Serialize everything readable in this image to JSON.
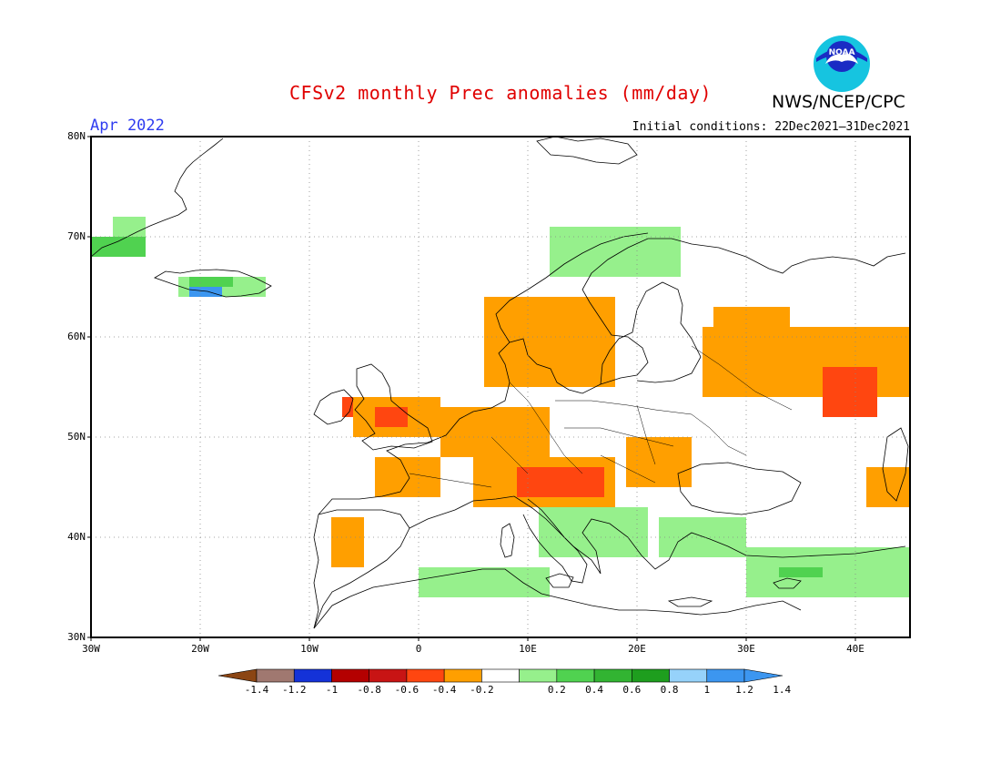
{
  "header": {
    "title": "CFSv2 monthly Prec anomalies (mm/day)",
    "org": "NWS/NCEP/CPC",
    "valid_month": "Apr 2022",
    "initial_conditions": "Initial conditions: 22Dec2021–31Dec2021",
    "logo_text": "NOAA"
  },
  "axes": {
    "lat_labels": [
      "80N",
      "70N",
      "60N",
      "50N",
      "40N",
      "30N"
    ],
    "lon_labels": [
      "30W",
      "20W",
      "10W",
      "0",
      "10E",
      "20E",
      "30E",
      "40E"
    ]
  },
  "colorbar": {
    "labels": [
      "-1.4",
      "-1.2",
      "-1",
      "-0.8",
      "-0.6",
      "-0.4",
      "-0.2",
      "0.2",
      "0.4",
      "0.6",
      "0.8",
      "1",
      "1.2",
      "1.4"
    ],
    "colors": [
      "#8b4513",
      "#a07870",
      "#1432d8",
      "#b40000",
      "#c81414",
      "#ff4610",
      "#ff9f00",
      "#ffffff",
      "#96f08c",
      "#50d250",
      "#32b432",
      "#1e9e1e",
      "#96d2fa",
      "#3c96f0",
      "#3c96f0"
    ]
  },
  "map": {
    "extent": {
      "lon": [
        -30,
        45
      ],
      "lat": [
        30,
        80
      ]
    },
    "cell_size_deg": 1,
    "anomaly_regions": [
      {
        "class": "neg-0.2",
        "lon": [
          -6,
          2
        ],
        "lat": [
          50,
          54
        ]
      },
      {
        "class": "neg-0.2",
        "lon": [
          -4,
          2
        ],
        "lat": [
          44,
          48
        ]
      },
      {
        "class": "neg-0.2",
        "lon": [
          2,
          12
        ],
        "lat": [
          48,
          53
        ]
      },
      {
        "class": "neg-0.2",
        "lon": [
          5,
          18
        ],
        "lat": [
          43,
          48
        ]
      },
      {
        "class": "neg-0.2",
        "lon": [
          6,
          18
        ],
        "lat": [
          55,
          64
        ]
      },
      {
        "class": "neg-0.2",
        "lon": [
          19,
          25
        ],
        "lat": [
          45,
          50
        ]
      },
      {
        "class": "neg-0.2",
        "lon": [
          26,
          45
        ],
        "lat": [
          54,
          61
        ]
      },
      {
        "class": "neg-0.2",
        "lon": [
          27,
          34
        ],
        "lat": [
          61,
          63
        ]
      },
      {
        "class": "neg-0.2",
        "lon": [
          41,
          45
        ],
        "lat": [
          43,
          47
        ]
      },
      {
        "class": "neg-0.2",
        "lon": [
          -8,
          -5
        ],
        "lat": [
          37,
          42
        ]
      },
      {
        "class": "neg-0.4",
        "lon": [
          9,
          17
        ],
        "lat": [
          44,
          47
        ]
      },
      {
        "class": "neg-0.4",
        "lon": [
          37,
          42
        ],
        "lat": [
          52,
          57
        ]
      },
      {
        "class": "neg-0.4",
        "lon": [
          -4,
          -1
        ],
        "lat": [
          51,
          53
        ]
      },
      {
        "class": "neg-0.4",
        "lon": [
          -7,
          -6
        ],
        "lat": [
          52,
          54
        ]
      },
      {
        "class": "pos-0.2",
        "lon": [
          -28,
          -25
        ],
        "lat": [
          69,
          72
        ]
      },
      {
        "class": "pos-0.2",
        "lon": [
          -22,
          -14
        ],
        "lat": [
          64,
          66
        ]
      },
      {
        "class": "pos-0.2",
        "lon": [
          11,
          21
        ],
        "lat": [
          38,
          43
        ]
      },
      {
        "class": "pos-0.2",
        "lon": [
          22,
          30
        ],
        "lat": [
          38,
          42
        ]
      },
      {
        "class": "pos-0.2",
        "lon": [
          30,
          45
        ],
        "lat": [
          34,
          39
        ]
      },
      {
        "class": "pos-0.2",
        "lon": [
          0,
          12
        ],
        "lat": [
          34,
          37
        ]
      },
      {
        "class": "pos-0.2",
        "lon": [
          12,
          24
        ],
        "lat": [
          66,
          71
        ]
      },
      {
        "class": "pos-0.4",
        "lon": [
          -30,
          -25
        ],
        "lat": [
          68,
          70
        ]
      },
      {
        "class": "pos-0.4",
        "lon": [
          -21,
          -17
        ],
        "lat": [
          65,
          66
        ]
      },
      {
        "class": "pos-0.4",
        "lon": [
          33,
          37
        ],
        "lat": [
          36,
          37
        ]
      },
      {
        "class": "pos-1.2",
        "lon": [
          -21,
          -18
        ],
        "lat": [
          64,
          65
        ]
      }
    ]
  }
}
